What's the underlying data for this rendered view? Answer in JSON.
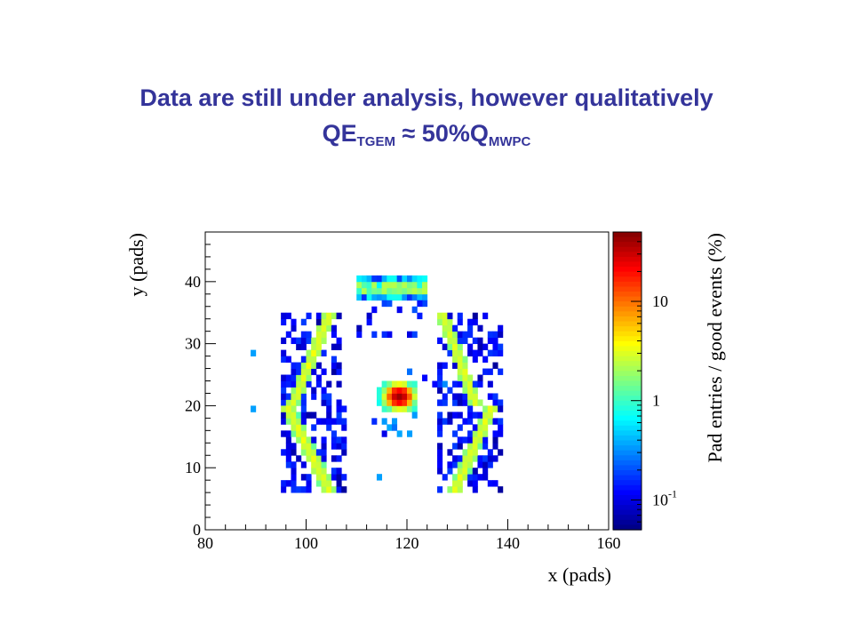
{
  "slide": {
    "title_line1": "Data are still under analysis, however qualitatively",
    "title_line2": {
      "qe": "QE",
      "sub1": "TGEM",
      "approx": " ≈ 50%Q",
      "sub2": "MWPC"
    }
  },
  "chart_data": {
    "type": "heatmap",
    "title": "",
    "xlabel": "x (pads)",
    "ylabel": "y (pads)",
    "zlabel": "Pad entries / good events (%)",
    "xlim": [
      80,
      160
    ],
    "ylim": [
      0,
      48
    ],
    "xticks": [
      80,
      100,
      120,
      140,
      160
    ],
    "yticks": [
      0,
      10,
      20,
      30,
      40
    ],
    "z_scale": "log",
    "zlim": [
      0.05,
      50
    ],
    "zticks": [
      {
        "value": 0.1,
        "base": "10",
        "exp": "-1"
      },
      {
        "value": 1,
        "base": "1",
        "exp": ""
      },
      {
        "value": 10,
        "base": "10",
        "exp": ""
      }
    ],
    "colormap": [
      "#000080",
      "#0000ff",
      "#0080ff",
      "#00ffff",
      "#80ff80",
      "#ffff00",
      "#ff8000",
      "#ff0000",
      "#800000"
    ],
    "grid": false,
    "regions": [
      {
        "name": "upper-left arc",
        "x": [
          95,
          106
        ],
        "y": [
          20,
          34
        ]
      },
      {
        "name": "lower-left arc",
        "x": [
          95,
          107
        ],
        "y": [
          6,
          19
        ]
      },
      {
        "name": "top band",
        "x": [
          110,
          123
        ],
        "y": [
          34,
          41
        ]
      },
      {
        "name": "upper-right arc",
        "x": [
          126,
          138
        ],
        "y": [
          20,
          34
        ]
      },
      {
        "name": "lower-right arc",
        "x": [
          126,
          138
        ],
        "y": [
          6,
          19
        ]
      },
      {
        "name": "center spot",
        "x": [
          113,
          122
        ],
        "y": [
          15,
          23
        ],
        "peak": {
          "x": 118,
          "y": 21,
          "value": 40
        }
      }
    ]
  }
}
